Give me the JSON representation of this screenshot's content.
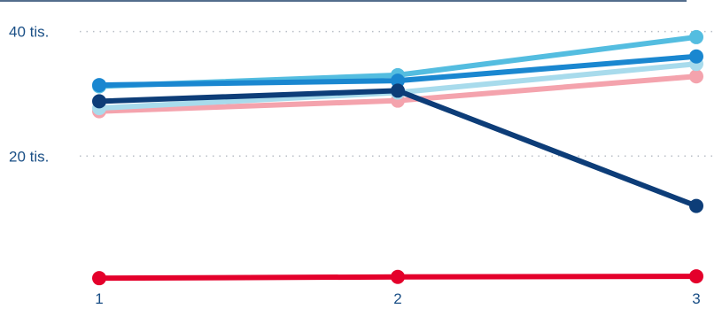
{
  "chart_data": {
    "type": "line",
    "title": "",
    "xlabel": "",
    "ylabel": "",
    "x": [
      1,
      2,
      3
    ],
    "x_tick_labels": [
      "1",
      "2",
      "3"
    ],
    "y_ticks": [
      20000,
      40000
    ],
    "y_tick_labels": [
      "20 tis.",
      "40 tis."
    ],
    "ylim": [
      0,
      42500
    ],
    "grid": "horizontal dotted",
    "legend": "none",
    "series": [
      {
        "color": "#f4a3ad",
        "values": [
          27200,
          28900,
          32800
        ]
      },
      {
        "color": "#a8dbec",
        "values": [
          27700,
          30200,
          34800
        ]
      },
      {
        "color": "#54bde0",
        "values": [
          31200,
          33000,
          39100
        ]
      },
      {
        "color": "#1a87d0",
        "values": [
          31400,
          32100,
          36000
        ]
      },
      {
        "color": "#0d3d78",
        "values": [
          28800,
          30500,
          12000
        ]
      },
      {
        "color": "#e4002b",
        "values": [
          400,
          600,
          700
        ]
      }
    ]
  }
}
